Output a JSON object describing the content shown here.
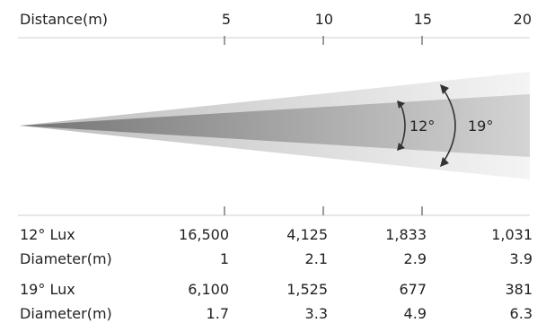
{
  "header": {
    "distance_label": "Distance(m)",
    "ticks": [
      "5",
      "10",
      "15",
      "20"
    ]
  },
  "beam": {
    "narrow_angle": "12°",
    "wide_angle": "19°",
    "colors": {
      "outer": "#e6e6e6",
      "inner": "#8c8c8c",
      "border": "#cfcfcf",
      "arrow": "#333333"
    }
  },
  "table": {
    "rows": [
      {
        "label": "12° Lux",
        "values": [
          "16,500",
          "4,125",
          "1,833",
          "1,031"
        ]
      },
      {
        "label": "Diameter(m)",
        "values": [
          "1",
          "2.1",
          "2.9",
          "3.9"
        ]
      },
      {
        "label": "19° Lux",
        "values": [
          "6,100",
          "1,525",
          "677",
          "381"
        ]
      },
      {
        "label": "Diameter(m)",
        "values": [
          "1.7",
          "3.3",
          "4.9",
          "6.3"
        ]
      }
    ]
  }
}
